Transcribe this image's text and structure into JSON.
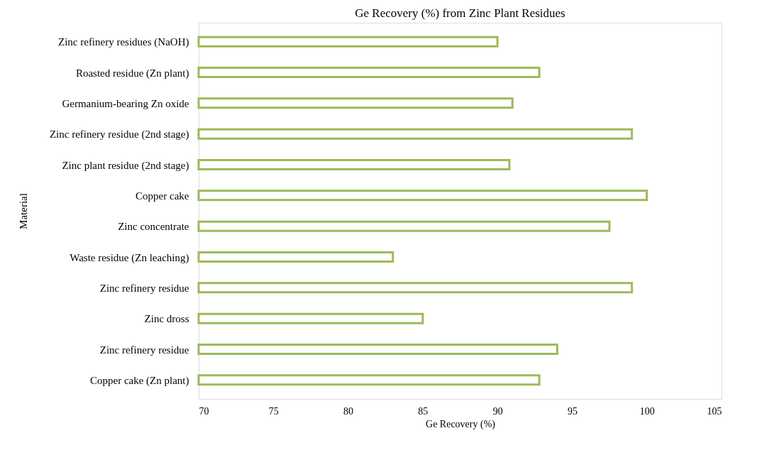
{
  "chart_data": {
    "type": "bar",
    "orientation": "horizontal",
    "title": "Ge Recovery (%) from Zinc Plant Residues",
    "xlabel": "Ge Recovery  (%)",
    "ylabel": "Material",
    "categories": [
      "Zinc refinery residues (NaOH)",
      "Roasted residue (Zn plant)",
      "Germanium-bearing Zn oxide",
      "Zinc refinery residue (2nd stage)",
      "Zinc plant residue (2nd stage)",
      "Copper cake",
      "Zinc concentrate",
      "Waste residue (Zn leaching)",
      "Zinc refinery residue",
      "Zinc dross",
      "Zinc refinery residue",
      "Copper cake (Zn plant)"
    ],
    "values": [
      90,
      92.8,
      91,
      99,
      90.8,
      100,
      97.5,
      83,
      99,
      85,
      94,
      92.8
    ],
    "color": "#9bbb59",
    "xlim": [
      70,
      105
    ],
    "xticks": [
      70,
      75,
      80,
      85,
      90,
      95,
      100,
      105
    ],
    "grid": false
  }
}
